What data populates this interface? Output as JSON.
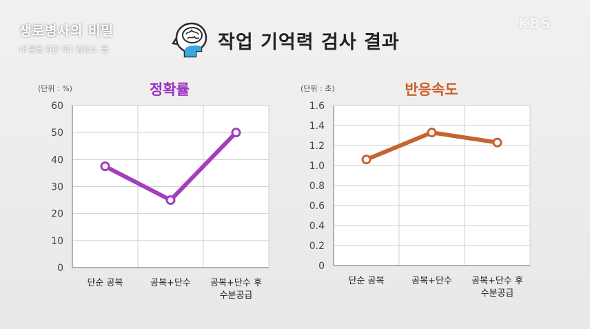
{
  "overlay": {
    "show_title": "생로병사의 비밀",
    "show_subtitle": "내 몸을 위한 제1 영양소, 물",
    "channel_logo": "KBS"
  },
  "page_title": "작업 기억력 검사 결과",
  "header_icon": "head-brain-water-icon",
  "chart_data": [
    {
      "type": "line",
      "title": "정확률",
      "unit_label": "(단위 : %)",
      "categories": [
        "단순 공복",
        "공복+단수",
        "공복+단수 후 수분공급"
      ],
      "category_lines": [
        [
          "단순 공복"
        ],
        [
          "공복+단수"
        ],
        [
          "공복+단수 후",
          "수분공급"
        ]
      ],
      "values": [
        37.5,
        25,
        50
      ],
      "ylim": [
        0,
        60
      ],
      "yticks": [
        "0",
        "10",
        "20",
        "30",
        "40",
        "50",
        "60"
      ],
      "grid": true,
      "color": "#a23fbd",
      "title_color": "#9b30c4"
    },
    {
      "type": "line",
      "title": "반응속도",
      "unit_label": "(단위 : 초)",
      "categories": [
        "단순 공복",
        "공복+단수",
        "공복+단수 후 수분공급"
      ],
      "category_lines": [
        [
          "단순 공복"
        ],
        [
          "공복+단수"
        ],
        [
          "공복+단수 후",
          "수분공급"
        ]
      ],
      "values": [
        1.06,
        1.33,
        1.23
      ],
      "ylim": [
        0,
        1.6
      ],
      "yticks": [
        "0",
        "0.2",
        "0.4",
        "0.6",
        "0.8",
        "1.0",
        "1.2",
        "1.4",
        "1.6"
      ],
      "grid": true,
      "color": "#c4652f",
      "title_color": "#c8602a"
    }
  ]
}
